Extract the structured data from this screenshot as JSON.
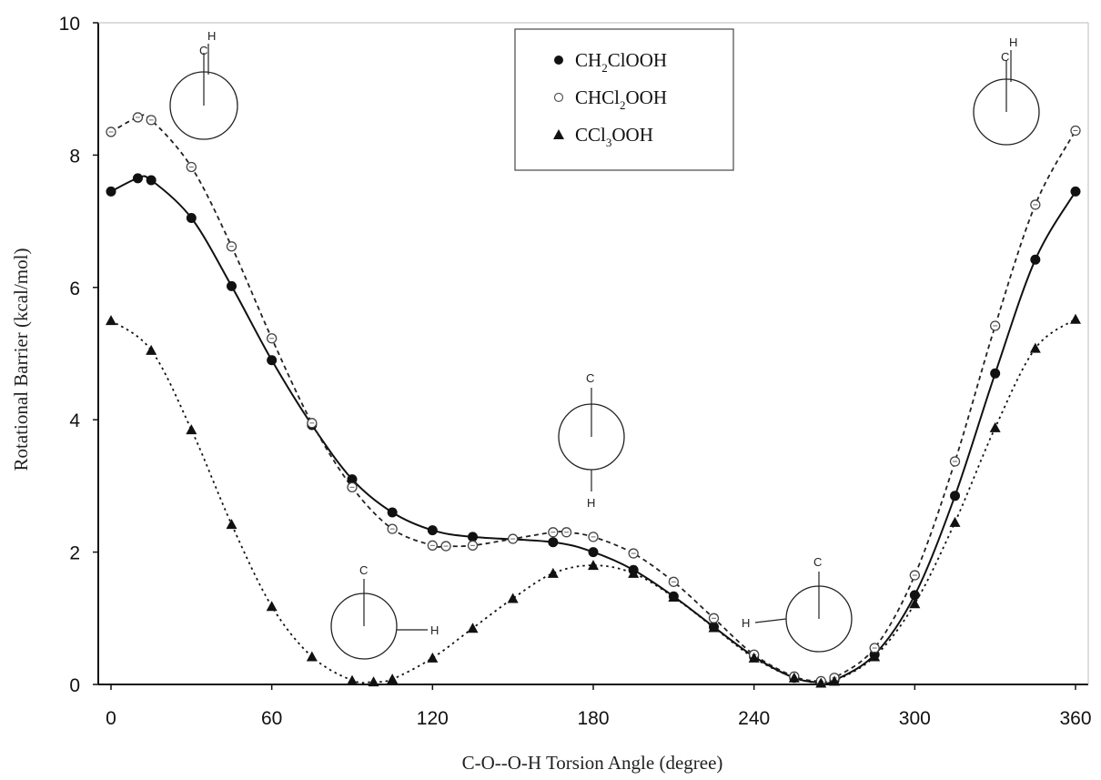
{
  "chart_data": {
    "type": "scatter",
    "xlabel": "C-O--O-H Torsion Angle (degree)",
    "ylabel": "Rotational Barrier (kcal/mol)",
    "xlim": [
      0,
      360
    ],
    "ylim": [
      0,
      10
    ],
    "xticks": [
      0,
      60,
      120,
      180,
      240,
      300,
      360
    ],
    "yticks": [
      0,
      2,
      4,
      6,
      8,
      10
    ],
    "grid": false,
    "legend_placement": "top-center",
    "series": [
      {
        "name": "CH2ClOOH",
        "legend_parts": [
          "CH",
          "2",
          "ClOOH"
        ],
        "marker": "filled-circle",
        "line": "solid",
        "color": "#111111",
        "x": [
          0,
          10,
          15,
          30,
          45,
          60,
          75,
          90,
          105,
          120,
          135,
          165,
          180,
          195,
          210,
          225,
          240,
          255,
          265,
          270,
          285,
          300,
          315,
          330,
          345,
          360
        ],
        "y": [
          7.45,
          7.65,
          7.62,
          7.05,
          6.02,
          4.9,
          3.92,
          3.1,
          2.6,
          2.33,
          2.23,
          2.15,
          2.0,
          1.73,
          1.33,
          0.87,
          0.42,
          0.1,
          0.03,
          0.06,
          0.45,
          1.35,
          2.85,
          4.7,
          6.42,
          7.45
        ]
      },
      {
        "name": "CHCl2OOH",
        "legend_parts": [
          "CHCl",
          "2",
          "OOH"
        ],
        "marker": "open-circle",
        "line": "dashed",
        "color": "#222222",
        "x": [
          0,
          10,
          15,
          30,
          45,
          60,
          75,
          90,
          105,
          120,
          125,
          135,
          150,
          165,
          170,
          180,
          195,
          210,
          225,
          240,
          255,
          265,
          270,
          285,
          300,
          315,
          330,
          345,
          360
        ],
        "y": [
          8.35,
          8.57,
          8.53,
          7.82,
          6.62,
          5.23,
          3.95,
          2.98,
          2.35,
          2.1,
          2.09,
          2.1,
          2.2,
          2.3,
          2.3,
          2.23,
          1.98,
          1.55,
          1.0,
          0.45,
          0.12,
          0.05,
          0.1,
          0.55,
          1.65,
          3.37,
          5.42,
          7.25,
          8.37
        ]
      },
      {
        "name": "CCl3OOH",
        "legend_parts": [
          "CCl",
          "3",
          "OOH"
        ],
        "marker": "filled-triangle",
        "line": "dotted",
        "color": "#111111",
        "x": [
          0,
          15,
          30,
          45,
          60,
          75,
          90,
          98,
          105,
          120,
          135,
          150,
          165,
          180,
          195,
          210,
          225,
          240,
          255,
          265,
          270,
          285,
          300,
          315,
          330,
          345,
          360
        ],
        "y": [
          5.5,
          5.05,
          3.85,
          2.42,
          1.18,
          0.42,
          0.06,
          0.04,
          0.08,
          0.4,
          0.85,
          1.3,
          1.68,
          1.8,
          1.68,
          1.32,
          0.86,
          0.4,
          0.1,
          0.02,
          0.05,
          0.42,
          1.22,
          2.45,
          3.88,
          5.08,
          5.52
        ]
      }
    ],
    "annotations": [
      {
        "name": "newman-0deg",
        "top": "H",
        "top2": "C",
        "side": ""
      },
      {
        "name": "newman-90deg",
        "top": "C",
        "side": "H"
      },
      {
        "name": "newman-180deg",
        "top": "C",
        "bottom": "H"
      },
      {
        "name": "newman-270deg",
        "top": "C",
        "side": "H"
      },
      {
        "name": "newman-360deg",
        "top": "H",
        "top2": "C"
      }
    ]
  }
}
